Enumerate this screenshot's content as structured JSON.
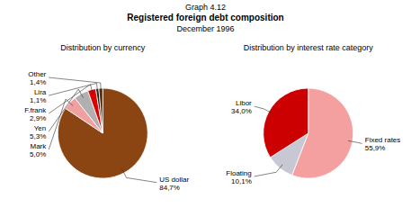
{
  "title": [
    "Graph 4.12",
    "Registered foreign debt composition",
    "December 1996"
  ],
  "chart_data": [
    {
      "type": "pie",
      "title": "Distribution by currency",
      "categories": [
        "US dollar",
        "Mark",
        "Yen",
        "F.frank",
        "Lira",
        "Other"
      ],
      "values": [
        84.7,
        5.0,
        5.3,
        2.9,
        1.1,
        1.4
      ],
      "value_labels": [
        "84,7%",
        "5,0%",
        "5,3%",
        "2,9%",
        "1,1%",
        "1,4%"
      ],
      "colors": [
        "#8B4513",
        "#f0a0a0",
        "#b0b0b0",
        "#dd0000",
        "#222222",
        "#5c2a00"
      ],
      "data_labels": true
    },
    {
      "type": "pie",
      "title": "Distribution by interest rate category",
      "categories": [
        "Fixed rates",
        "Floating",
        "Libor"
      ],
      "values": [
        55.9,
        10.1,
        34.0
      ],
      "value_labels": [
        "55,9%",
        "10,1%",
        "34,0%"
      ],
      "colors": [
        "#f4a0a0",
        "#c8c8d4",
        "#cc0000"
      ],
      "data_labels": true
    }
  ]
}
